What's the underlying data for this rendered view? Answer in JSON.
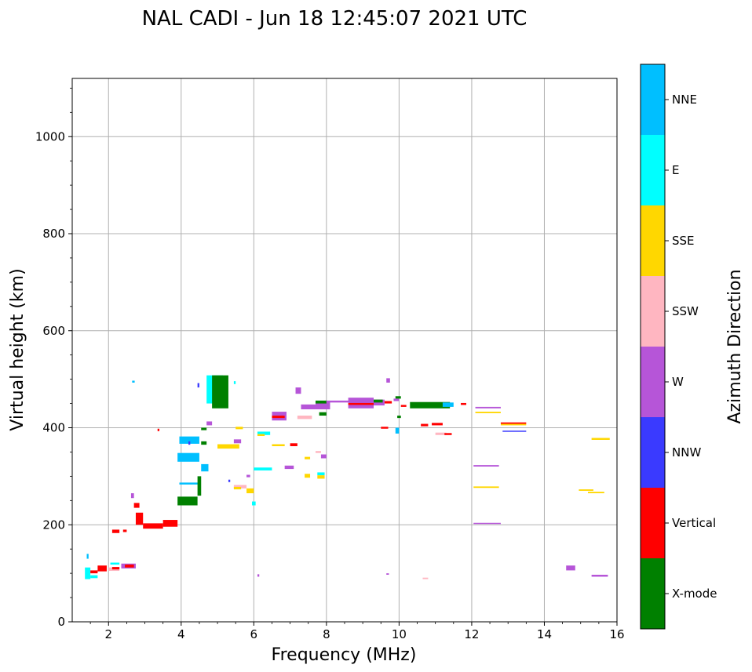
{
  "chart_data": {
    "type": "scatter",
    "title": "NAL CADI - Jun 18 12:45:07 2021 UTC",
    "xlabel": "Frequency (MHz)",
    "ylabel": "Virtual height (km)",
    "xlim": [
      1,
      16
    ],
    "ylim": [
      0,
      1120
    ],
    "xticks": [
      2,
      4,
      6,
      8,
      10,
      12,
      14,
      16
    ],
    "yticks": [
      0,
      200,
      400,
      600,
      800,
      1000
    ],
    "grid": true,
    "colorbar": {
      "label": "Azimuth Direction",
      "categories": [
        {
          "name": "X-mode",
          "color": "#008000"
        },
        {
          "name": "Vertical",
          "color": "#ff0000"
        },
        {
          "name": "NNW",
          "color": "#3a3aff"
        },
        {
          "name": "W",
          "color": "#b655d8"
        },
        {
          "name": "SSW",
          "color": "#ffb6c1"
        },
        {
          "name": "SSE",
          "color": "#ffd700"
        },
        {
          "name": "E",
          "color": "#00ffff"
        },
        {
          "name": "NNE",
          "color": "#00bfff"
        }
      ]
    },
    "echoes": [
      {
        "dir": "E",
        "x0": 1.35,
        "x1": 1.5,
        "y0": 88,
        "y1": 112
      },
      {
        "dir": "Vertical",
        "x0": 1.5,
        "x1": 1.7,
        "y0": 100,
        "y1": 106
      },
      {
        "dir": "Vertical",
        "x0": 1.7,
        "x1": 1.95,
        "y0": 104,
        "y1": 116
      },
      {
        "dir": "NNE",
        "x0": 1.4,
        "x1": 1.45,
        "y0": 130,
        "y1": 140
      },
      {
        "dir": "E",
        "x0": 1.5,
        "x1": 1.7,
        "y0": 90,
        "y1": 96
      },
      {
        "dir": "SSW",
        "x0": 2.0,
        "x1": 2.3,
        "y0": 105,
        "y1": 112
      },
      {
        "dir": "E",
        "x0": 2.05,
        "x1": 2.3,
        "y0": 118,
        "y1": 122
      },
      {
        "dir": "Vertical",
        "x0": 2.1,
        "x1": 2.3,
        "y0": 108,
        "y1": 113
      },
      {
        "dir": "W",
        "x0": 2.35,
        "x1": 2.75,
        "y0": 110,
        "y1": 120
      },
      {
        "dir": "Vertical",
        "x0": 2.45,
        "x1": 2.7,
        "y0": 112,
        "y1": 118
      },
      {
        "dir": "Vertical",
        "x0": 2.1,
        "x1": 2.3,
        "y0": 183,
        "y1": 190
      },
      {
        "dir": "Vertical",
        "x0": 2.4,
        "x1": 2.5,
        "y0": 185,
        "y1": 190
      },
      {
        "dir": "NNE",
        "x0": 2.65,
        "x1": 2.72,
        "y0": 493,
        "y1": 497
      },
      {
        "dir": "W",
        "x0": 2.62,
        "x1": 2.7,
        "y0": 255,
        "y1": 265
      },
      {
        "dir": "Vertical",
        "x0": 2.7,
        "x1": 2.85,
        "y0": 235,
        "y1": 245
      },
      {
        "dir": "Vertical",
        "x0": 2.75,
        "x1": 2.95,
        "y0": 200,
        "y1": 225
      },
      {
        "dir": "Vertical",
        "x0": 2.95,
        "x1": 3.5,
        "y0": 192,
        "y1": 203
      },
      {
        "dir": "Vertical",
        "x0": 3.5,
        "x1": 3.9,
        "y0": 196,
        "y1": 210
      },
      {
        "dir": "Vertical",
        "x0": 3.35,
        "x1": 3.4,
        "y0": 393,
        "y1": 398
      },
      {
        "dir": "X-mode",
        "x0": 3.9,
        "x1": 4.45,
        "y0": 240,
        "y1": 258
      },
      {
        "dir": "NNE",
        "x0": 3.9,
        "x1": 4.5,
        "y0": 330,
        "y1": 348
      },
      {
        "dir": "NNE",
        "x0": 3.95,
        "x1": 4.5,
        "y0": 367,
        "y1": 382
      },
      {
        "dir": "NNE",
        "x0": 3.95,
        "x1": 4.5,
        "y0": 283,
        "y1": 287
      },
      {
        "dir": "X-mode",
        "x0": 4.45,
        "x1": 4.55,
        "y0": 260,
        "y1": 300
      },
      {
        "dir": "NNE",
        "x0": 4.55,
        "x1": 4.75,
        "y0": 310,
        "y1": 325
      },
      {
        "dir": "X-mode",
        "x0": 4.55,
        "x1": 4.7,
        "y0": 395,
        "y1": 400
      },
      {
        "dir": "W",
        "x0": 4.7,
        "x1": 4.85,
        "y0": 405,
        "y1": 413
      },
      {
        "dir": "X-mode",
        "x0": 4.55,
        "x1": 4.7,
        "y0": 365,
        "y1": 372
      },
      {
        "dir": "E",
        "x0": 4.7,
        "x1": 5.15,
        "y0": 450,
        "y1": 508
      },
      {
        "dir": "X-mode",
        "x0": 4.85,
        "x1": 5.3,
        "y0": 440,
        "y1": 508
      },
      {
        "dir": "NNW",
        "x0": 4.45,
        "x1": 4.5,
        "y0": 483,
        "y1": 492
      },
      {
        "dir": "SSE",
        "x0": 5.0,
        "x1": 5.6,
        "y0": 357,
        "y1": 366
      },
      {
        "dir": "W",
        "x0": 5.45,
        "x1": 5.65,
        "y0": 368,
        "y1": 376
      },
      {
        "dir": "SSE",
        "x0": 5.5,
        "x1": 5.7,
        "y0": 397,
        "y1": 402
      },
      {
        "dir": "SSW",
        "x0": 5.45,
        "x1": 5.8,
        "y0": 275,
        "y1": 282
      },
      {
        "dir": "SSE",
        "x0": 5.45,
        "x1": 5.65,
        "y0": 273,
        "y1": 278
      },
      {
        "dir": "SSE",
        "x0": 5.8,
        "x1": 6.0,
        "y0": 265,
        "y1": 275
      },
      {
        "dir": "E",
        "x0": 5.95,
        "x1": 6.05,
        "y0": 240,
        "y1": 248
      },
      {
        "dir": "E",
        "x0": 6.0,
        "x1": 6.5,
        "y0": 312,
        "y1": 318
      },
      {
        "dir": "E",
        "x0": 6.1,
        "x1": 6.45,
        "y0": 385,
        "y1": 392
      },
      {
        "dir": "SSE",
        "x0": 6.1,
        "x1": 6.3,
        "y0": 383,
        "y1": 387
      },
      {
        "dir": "W",
        "x0": 6.5,
        "x1": 6.9,
        "y0": 415,
        "y1": 433
      },
      {
        "dir": "Vertical",
        "x0": 6.5,
        "x1": 6.85,
        "y0": 420,
        "y1": 425
      },
      {
        "dir": "SSE",
        "x0": 6.5,
        "x1": 6.85,
        "y0": 362,
        "y1": 366
      },
      {
        "dir": "W",
        "x0": 6.85,
        "x1": 7.1,
        "y0": 315,
        "y1": 322
      },
      {
        "dir": "Vertical",
        "x0": 7.0,
        "x1": 7.2,
        "y0": 362,
        "y1": 368
      },
      {
        "dir": "W",
        "x0": 7.15,
        "x1": 7.3,
        "y0": 470,
        "y1": 483
      },
      {
        "dir": "SSW",
        "x0": 7.2,
        "x1": 7.6,
        "y0": 418,
        "y1": 425
      },
      {
        "dir": "W",
        "x0": 7.3,
        "x1": 7.7,
        "y0": 438,
        "y1": 448
      },
      {
        "dir": "SSE",
        "x0": 7.4,
        "x1": 7.55,
        "y0": 297,
        "y1": 305
      },
      {
        "dir": "E",
        "x0": 7.75,
        "x1": 7.95,
        "y0": 302,
        "y1": 308
      },
      {
        "dir": "SSE",
        "x0": 7.4,
        "x1": 7.55,
        "y0": 335,
        "y1": 340
      },
      {
        "dir": "SSE",
        "x0": 7.75,
        "x1": 7.95,
        "y0": 295,
        "y1": 302
      },
      {
        "dir": "W",
        "x0": 7.85,
        "x1": 8.0,
        "y0": 337,
        "y1": 345
      },
      {
        "dir": "SSW",
        "x0": 7.7,
        "x1": 7.85,
        "y0": 348,
        "y1": 352
      },
      {
        "dir": "W",
        "x0": 7.7,
        "x1": 8.1,
        "y0": 438,
        "y1": 455
      },
      {
        "dir": "X-mode",
        "x0": 7.8,
        "x1": 8.0,
        "y0": 425,
        "y1": 432
      },
      {
        "dir": "X-mode",
        "x0": 7.7,
        "x1": 8.0,
        "y0": 450,
        "y1": 456
      },
      {
        "dir": "W",
        "x0": 8.0,
        "x1": 9.0,
        "y0": 452,
        "y1": 456
      },
      {
        "dir": "W",
        "x0": 8.6,
        "x1": 9.3,
        "y0": 440,
        "y1": 462
      },
      {
        "dir": "Vertical",
        "x0": 8.6,
        "x1": 9.3,
        "y0": 447,
        "y1": 451
      },
      {
        "dir": "W",
        "x0": 9.3,
        "x1": 9.6,
        "y0": 446,
        "y1": 458
      },
      {
        "dir": "X-mode",
        "x0": 9.3,
        "x1": 9.55,
        "y0": 452,
        "y1": 458
      },
      {
        "dir": "Vertical",
        "x0": 9.5,
        "x1": 9.7,
        "y0": 398,
        "y1": 402
      },
      {
        "dir": "W",
        "x0": 9.65,
        "x1": 9.75,
        "y0": 493,
        "y1": 502
      },
      {
        "dir": "Vertical",
        "x0": 9.6,
        "x1": 9.8,
        "y0": 450,
        "y1": 455
      },
      {
        "dir": "W",
        "x0": 9.85,
        "x1": 10.0,
        "y0": 455,
        "y1": 460
      },
      {
        "dir": "X-mode",
        "x0": 9.9,
        "x1": 10.05,
        "y0": 460,
        "y1": 465
      },
      {
        "dir": "NNE",
        "x0": 9.9,
        "x1": 10.0,
        "y0": 388,
        "y1": 400
      },
      {
        "dir": "X-mode",
        "x0": 9.95,
        "x1": 10.05,
        "y0": 420,
        "y1": 425
      },
      {
        "dir": "Vertical",
        "x0": 10.05,
        "x1": 10.2,
        "y0": 443,
        "y1": 447
      },
      {
        "dir": "X-mode",
        "x0": 10.3,
        "x1": 11.4,
        "y0": 440,
        "y1": 453
      },
      {
        "dir": "NNE",
        "x0": 11.2,
        "x1": 11.5,
        "y0": 443,
        "y1": 452
      },
      {
        "dir": "Vertical",
        "x0": 10.6,
        "x1": 10.8,
        "y0": 403,
        "y1": 408
      },
      {
        "dir": "Vertical",
        "x0": 10.9,
        "x1": 11.2,
        "y0": 405,
        "y1": 410
      },
      {
        "dir": "SSW",
        "x0": 11.0,
        "x1": 11.3,
        "y0": 385,
        "y1": 390
      },
      {
        "dir": "Vertical",
        "x0": 11.25,
        "x1": 11.45,
        "y0": 385,
        "y1": 389
      },
      {
        "dir": "Vertical",
        "x0": 11.7,
        "x1": 11.85,
        "y0": 447,
        "y1": 451
      },
      {
        "dir": "W",
        "x0": 12.1,
        "x1": 12.8,
        "y0": 440,
        "y1": 443
      },
      {
        "dir": "SSE",
        "x0": 12.1,
        "x1": 12.8,
        "y0": 430,
        "y1": 433
      },
      {
        "dir": "W",
        "x0": 12.05,
        "x1": 12.75,
        "y0": 320,
        "y1": 323
      },
      {
        "dir": "SSE",
        "x0": 12.05,
        "x1": 12.75,
        "y0": 276,
        "y1": 279
      },
      {
        "dir": "W",
        "x0": 12.05,
        "x1": 12.8,
        "y0": 202,
        "y1": 204
      },
      {
        "dir": "Vertical",
        "x0": 12.8,
        "x1": 13.5,
        "y0": 408,
        "y1": 411
      },
      {
        "dir": "SSE",
        "x0": 12.8,
        "x1": 13.5,
        "y0": 405,
        "y1": 408
      },
      {
        "dir": "NNW",
        "x0": 12.85,
        "x1": 13.5,
        "y0": 392,
        "y1": 394
      },
      {
        "dir": "SSE",
        "x0": 14.95,
        "x1": 15.35,
        "y0": 270,
        "y1": 273
      },
      {
        "dir": "SSE",
        "x0": 15.2,
        "x1": 15.65,
        "y0": 265,
        "y1": 268
      },
      {
        "dir": "SSE",
        "x0": 15.3,
        "x1": 15.8,
        "y0": 375,
        "y1": 379
      },
      {
        "dir": "W",
        "x0": 14.6,
        "x1": 14.85,
        "y0": 106,
        "y1": 116
      },
      {
        "dir": "W",
        "x0": 15.3,
        "x1": 15.75,
        "y0": 93,
        "y1": 97
      },
      {
        "dir": "W",
        "x0": 6.1,
        "x1": 6.15,
        "y0": 93,
        "y1": 98
      },
      {
        "dir": "SSW",
        "x0": 10.65,
        "x1": 10.8,
        "y0": 88,
        "y1": 91
      },
      {
        "dir": "W",
        "x0": 9.65,
        "x1": 9.72,
        "y0": 97,
        "y1": 100
      },
      {
        "dir": "NNW",
        "x0": 5.3,
        "x1": 5.35,
        "y0": 288,
        "y1": 293
      },
      {
        "dir": "E",
        "x0": 5.45,
        "x1": 5.5,
        "y0": 490,
        "y1": 496
      },
      {
        "dir": "W",
        "x0": 5.8,
        "x1": 5.9,
        "y0": 298,
        "y1": 303
      },
      {
        "dir": "NNW",
        "x0": 4.2,
        "x1": 4.25,
        "y0": 365,
        "y1": 372
      }
    ]
  }
}
